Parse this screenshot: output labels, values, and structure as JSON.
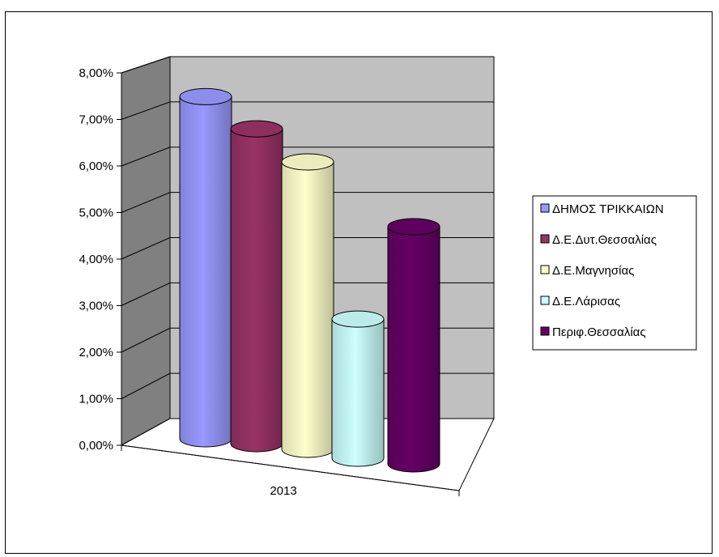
{
  "chart_data": {
    "type": "bar",
    "style": "3d-cylinder",
    "categories": [
      "2013"
    ],
    "series": [
      {
        "name": "ΔΗΜΟΣ  ΤΡΙΚΚΑΙΩΝ",
        "values": [
          7.5
        ],
        "color": "#9999ff"
      },
      {
        "name": "Δ.Ε.Δυτ.Θεσσαλίας",
        "values": [
          6.9
        ],
        "color": "#993366"
      },
      {
        "name": "Δ.Ε.Μαγνησίας",
        "values": [
          6.3
        ],
        "color": "#ffffcc"
      },
      {
        "name": "Δ.Ε.Λάρισας",
        "values": [
          3.05
        ],
        "color": "#ccffff"
      },
      {
        "name": "Περιφ.Θεσσαλίας",
        "values": [
          5.2
        ],
        "color": "#660066"
      }
    ],
    "ylim": [
      0,
      8
    ],
    "yticks": [
      "0,00%",
      "1,00%",
      "2,00%",
      "3,00%",
      "4,00%",
      "5,00%",
      "6,00%",
      "7,00%",
      "8,00%"
    ],
    "grid": true,
    "legend_position": "right",
    "wall_color": "#c0c0c0",
    "side_wall_color": "#808080",
    "title": "",
    "xlabel": "",
    "ylabel": ""
  }
}
